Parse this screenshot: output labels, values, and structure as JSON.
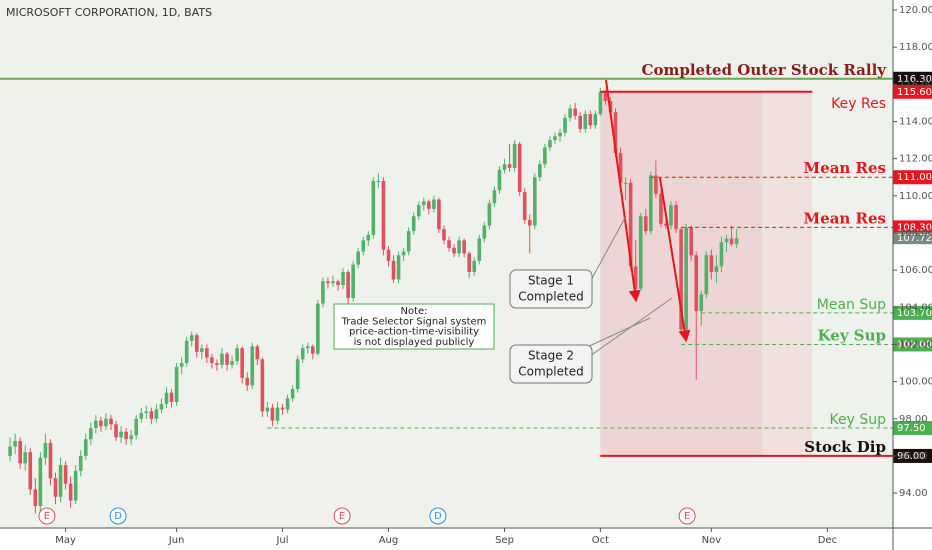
{
  "chart_data": {
    "type": "candlestick",
    "title": "MICROSOFT CORPORATION, 1D, BATS",
    "up_color": "#53b06a",
    "down_color": "#e0505e",
    "xlim": [
      -2,
      175
    ],
    "ylim": [
      92.12,
      120.54
    ],
    "xticks": [
      {
        "value": 11,
        "label": "May"
      },
      {
        "value": 33,
        "label": "Jun"
      },
      {
        "value": 54,
        "label": "Jul"
      },
      {
        "value": 75,
        "label": "Aug"
      },
      {
        "value": 98,
        "label": "Sep"
      },
      {
        "value": 117,
        "label": "Oct"
      },
      {
        "value": 139,
        "label": "Nov"
      },
      {
        "value": 162,
        "label": "Dec"
      }
    ],
    "yticks": [
      {
        "value": 94,
        "label": "94.00"
      },
      {
        "value": 96,
        "label": "96.00"
      },
      {
        "value": 98,
        "label": "98.00"
      },
      {
        "value": 100,
        "label": "100.00"
      },
      {
        "value": 102,
        "label": "102.00"
      },
      {
        "value": 104,
        "label": "104.00"
      },
      {
        "value": 106,
        "label": "106.00"
      },
      {
        "value": 108,
        "label": "108.00"
      },
      {
        "value": 110,
        "label": "110.00"
      },
      {
        "value": 112,
        "label": "112.00"
      },
      {
        "value": 114,
        "label": "114.00"
      },
      {
        "value": 116,
        "label": "116.00"
      },
      {
        "value": 118,
        "label": "118.00"
      },
      {
        "value": 120,
        "label": "120.00"
      }
    ],
    "ohlc": [
      [
        96.0,
        97.0,
        95.7,
        96.5
      ],
      [
        96.5,
        97.2,
        96.1,
        96.8
      ],
      [
        96.8,
        97.0,
        95.3,
        95.6
      ],
      [
        95.6,
        96.6,
        95.2,
        96.2
      ],
      [
        96.2,
        96.4,
        93.9,
        94.2
      ],
      [
        94.2,
        94.8,
        92.9,
        93.3
      ],
      [
        93.3,
        96.2,
        93.0,
        95.9
      ],
      [
        95.9,
        97.2,
        95.5,
        96.7
      ],
      [
        96.7,
        96.9,
        94.4,
        94.8
      ],
      [
        94.8,
        95.1,
        93.4,
        93.8
      ],
      [
        93.8,
        95.9,
        93.5,
        95.5
      ],
      [
        95.5,
        95.7,
        94.2,
        94.5
      ],
      [
        94.5,
        94.9,
        93.2,
        93.6
      ],
      [
        93.6,
        95.5,
        93.4,
        95.2
      ],
      [
        95.2,
        96.3,
        94.9,
        96.0
      ],
      [
        96.0,
        97.2,
        95.8,
        96.9
      ],
      [
        96.9,
        97.8,
        96.6,
        97.5
      ],
      [
        97.5,
        98.2,
        97.2,
        97.9
      ],
      [
        97.9,
        98.1,
        97.3,
        97.6
      ],
      [
        97.6,
        98.3,
        97.4,
        98.0
      ],
      [
        98.0,
        98.2,
        97.4,
        97.7
      ],
      [
        97.7,
        97.9,
        96.8,
        97.0
      ],
      [
        97.0,
        97.6,
        96.7,
        97.3
      ],
      [
        97.3,
        97.5,
        96.6,
        96.9
      ],
      [
        96.9,
        97.4,
        96.6,
        97.1
      ],
      [
        97.1,
        98.2,
        96.9,
        98.0
      ],
      [
        98.0,
        98.6,
        97.8,
        98.3
      ],
      [
        98.3,
        98.7,
        98.0,
        98.4
      ],
      [
        98.4,
        98.6,
        97.7,
        98.0
      ],
      [
        98.0,
        98.8,
        97.8,
        98.5
      ],
      [
        98.5,
        99.1,
        98.3,
        98.8
      ],
      [
        98.8,
        99.7,
        98.6,
        99.4
      ],
      [
        99.4,
        99.6,
        98.6,
        98.9
      ],
      [
        98.9,
        101.0,
        98.7,
        100.8
      ],
      [
        100.8,
        101.3,
        100.4,
        101.0
      ],
      [
        101.0,
        102.4,
        100.8,
        102.2
      ],
      [
        102.2,
        102.7,
        101.9,
        102.5
      ],
      [
        102.5,
        102.6,
        101.3,
        101.6
      ],
      [
        101.6,
        102.0,
        101.2,
        101.8
      ],
      [
        101.8,
        102.0,
        101.0,
        101.3
      ],
      [
        101.3,
        101.5,
        100.7,
        101.0
      ],
      [
        101.0,
        101.2,
        100.6,
        100.9
      ],
      [
        100.9,
        101.8,
        100.7,
        101.5
      ],
      [
        101.5,
        101.6,
        100.6,
        100.9
      ],
      [
        100.9,
        101.4,
        100.7,
        101.1
      ],
      [
        101.1,
        102.0,
        100.9,
        101.8
      ],
      [
        101.8,
        101.9,
        99.9,
        100.2
      ],
      [
        100.2,
        100.5,
        99.5,
        99.8
      ],
      [
        99.8,
        102.1,
        99.6,
        101.9
      ],
      [
        101.9,
        102.0,
        100.9,
        101.2
      ],
      [
        101.2,
        101.3,
        98.1,
        98.4
      ],
      [
        98.4,
        98.9,
        98.1,
        98.6
      ],
      [
        98.6,
        98.8,
        97.6,
        97.9
      ],
      [
        97.9,
        98.9,
        97.7,
        98.6
      ],
      [
        98.6,
        98.8,
        98.2,
        98.5
      ],
      [
        98.5,
        99.3,
        98.3,
        99.1
      ],
      [
        99.1,
        99.8,
        98.9,
        99.6
      ],
      [
        99.6,
        101.4,
        99.4,
        101.2
      ],
      [
        101.2,
        102.0,
        101.0,
        101.8
      ],
      [
        101.8,
        102.1,
        101.5,
        101.9
      ],
      [
        101.9,
        102.0,
        101.2,
        101.5
      ],
      [
        101.5,
        104.4,
        101.4,
        104.2
      ],
      [
        104.2,
        105.6,
        104.0,
        105.4
      ],
      [
        105.4,
        105.6,
        105.0,
        105.3
      ],
      [
        105.3,
        105.7,
        105.1,
        105.4
      ],
      [
        105.4,
        105.5,
        104.9,
        105.2
      ],
      [
        105.2,
        106.1,
        105.0,
        105.9
      ],
      [
        105.9,
        106.0,
        104.2,
        104.5
      ],
      [
        104.5,
        106.5,
        104.3,
        106.3
      ],
      [
        106.3,
        107.2,
        106.1,
        107.0
      ],
      [
        107.0,
        107.8,
        106.8,
        107.6
      ],
      [
        107.6,
        108.1,
        107.3,
        107.9
      ],
      [
        107.9,
        111.0,
        107.7,
        110.8
      ],
      [
        110.8,
        111.2,
        110.4,
        110.8
      ],
      [
        110.8,
        111.0,
        106.8,
        107.1
      ],
      [
        107.1,
        107.3,
        106.2,
        106.5
      ],
      [
        106.5,
        106.8,
        105.3,
        105.5
      ],
      [
        105.5,
        107.0,
        105.3,
        106.8
      ],
      [
        106.8,
        107.2,
        106.5,
        107.0
      ],
      [
        107.0,
        108.3,
        106.8,
        108.1
      ],
      [
        108.1,
        109.1,
        107.9,
        108.9
      ],
      [
        108.9,
        109.7,
        108.7,
        109.5
      ],
      [
        109.5,
        109.9,
        109.2,
        109.7
      ],
      [
        109.7,
        109.8,
        109.0,
        109.3
      ],
      [
        109.3,
        110.0,
        109.1,
        109.8
      ],
      [
        109.8,
        109.9,
        108.0,
        108.2
      ],
      [
        108.2,
        108.4,
        107.4,
        107.6
      ],
      [
        107.6,
        107.8,
        107.0,
        107.2
      ],
      [
        107.2,
        107.4,
        106.7,
        106.9
      ],
      [
        106.9,
        107.8,
        106.7,
        107.6
      ],
      [
        107.6,
        107.7,
        106.7,
        106.9
      ],
      [
        106.9,
        107.0,
        105.6,
        105.9
      ],
      [
        105.9,
        106.7,
        105.7,
        106.5
      ],
      [
        106.5,
        107.9,
        106.3,
        107.7
      ],
      [
        107.7,
        108.6,
        107.5,
        108.4
      ],
      [
        108.4,
        109.8,
        108.2,
        109.6
      ],
      [
        109.6,
        110.5,
        109.4,
        110.3
      ],
      [
        110.3,
        111.6,
        110.1,
        111.4
      ],
      [
        111.4,
        112.0,
        111.2,
        111.7
      ],
      [
        111.7,
        112.8,
        111.3,
        111.5
      ],
      [
        111.5,
        113.0,
        111.3,
        112.8
      ],
      [
        112.8,
        112.9,
        110.0,
        110.2
      ],
      [
        110.2,
        110.4,
        108.5,
        108.7
      ],
      [
        108.7,
        109.0,
        106.9,
        108.4
      ],
      [
        108.4,
        111.2,
        108.2,
        111.0
      ],
      [
        111.0,
        111.9,
        110.8,
        111.7
      ],
      [
        111.7,
        112.8,
        111.5,
        112.6
      ],
      [
        112.6,
        113.2,
        112.4,
        113.0
      ],
      [
        113.0,
        113.4,
        112.8,
        113.2
      ],
      [
        113.2,
        113.6,
        112.9,
        113.4
      ],
      [
        113.4,
        114.4,
        113.2,
        114.2
      ],
      [
        114.2,
        114.9,
        114.0,
        114.7
      ],
      [
        114.7,
        115.0,
        114.1,
        114.3
      ],
      [
        114.3,
        114.5,
        113.4,
        113.6
      ],
      [
        113.6,
        114.6,
        113.4,
        114.4
      ],
      [
        114.4,
        114.6,
        113.6,
        113.8
      ],
      [
        113.8,
        114.6,
        113.6,
        114.4
      ],
      [
        114.4,
        115.8,
        114.3,
        115.6
      ],
      [
        115.6,
        115.7,
        114.9,
        115.1
      ],
      [
        115.1,
        115.3,
        114.3,
        114.5
      ],
      [
        114.5,
        114.7,
        112.1,
        112.3
      ],
      [
        112.3,
        112.6,
        110.5,
        110.7
      ],
      [
        110.7,
        111.0,
        109.8,
        110.7
      ],
      [
        110.7,
        110.9,
        106.0,
        106.2
      ],
      [
        106.2,
        107.6,
        104.8,
        105.0
      ],
      [
        105.0,
        109.1,
        104.9,
        108.9
      ],
      [
        108.9,
        109.3,
        107.9,
        108.1
      ],
      [
        108.1,
        111.3,
        107.9,
        111.1
      ],
      [
        111.1,
        111.9,
        109.9,
        110.1
      ],
      [
        110.1,
        110.3,
        108.3,
        108.5
      ],
      [
        108.5,
        109.0,
        108.2,
        108.4
      ],
      [
        108.4,
        109.7,
        108.2,
        109.5
      ],
      [
        109.5,
        109.7,
        108.0,
        108.2
      ],
      [
        108.2,
        108.3,
        102.6,
        102.8
      ],
      [
        102.8,
        108.5,
        102.5,
        108.3
      ],
      [
        108.3,
        108.4,
        106.5,
        106.8
      ],
      [
        106.8,
        107.0,
        100.1,
        103.8
      ],
      [
        103.8,
        104.9,
        103.0,
        104.7
      ],
      [
        104.7,
        107.0,
        104.5,
        106.8
      ],
      [
        106.8,
        107.1,
        105.5,
        105.9
      ],
      [
        105.9,
        106.8,
        105.3,
        106.2
      ],
      [
        106.2,
        107.8,
        105.9,
        107.5
      ],
      [
        107.5,
        107.9,
        107.0,
        107.7
      ],
      [
        107.7,
        108.4,
        107.3,
        107.4
      ],
      [
        107.4,
        108.2,
        107.2,
        107.72
      ]
    ],
    "last_price": {
      "value": 107.72,
      "label": "107.72"
    },
    "levels": [
      {
        "name": "Completed Outer Stock Rally",
        "value": 116.3,
        "value_label": "116.30",
        "from": -2,
        "color": "#6aa84f",
        "text_color": "#8b1a1a",
        "tag_color": "#1a0d0d",
        "dashed": false,
        "bold": true
      },
      {
        "name": "Key Res",
        "value": 115.6,
        "value_label": "115.60",
        "from": 117,
        "to": 159,
        "color": "#e8141e",
        "text_color": "#e8141e",
        "tag_color": "#e8141e",
        "dashed": false,
        "bold": false
      },
      {
        "name": "Mean Res",
        "value": 111.0,
        "value_label": "111.00",
        "from": 127,
        "color": "#e8141e",
        "text_color": "#e8141e",
        "tag_color": "#e8141e",
        "dashed": true,
        "bold": true
      },
      {
        "name": "Mean Res",
        "value": 108.3,
        "value_label": "108.30",
        "from": 133,
        "color": "#e8141e",
        "text_color": "#e8141e",
        "tag_color": "#e8141e",
        "dashed": true,
        "bold": true
      },
      {
        "name": "Mean Sup",
        "value": 103.7,
        "value_label": "103.70",
        "from": 137,
        "color": "#4caf50",
        "text_color": "#4caf50",
        "tag_color": "#4caf50",
        "dashed": true,
        "bold": false
      },
      {
        "name": "Key Sup",
        "value": 102.0,
        "value_label": "102.00",
        "from": 133,
        "color": "#4caf50",
        "text_color": "#4caf50",
        "tag_color": "#4caf50",
        "dashed": true,
        "bold": true
      },
      {
        "name": "Key Sup",
        "value": 97.5,
        "value_label": "97.50",
        "from": 51,
        "color": "#4caf50",
        "text_color": "#4caf50",
        "tag_color": "#4caf50",
        "dashed": true,
        "bold": false
      },
      {
        "name": "Stock Dip",
        "value": 96.0,
        "value_label": "96.00",
        "from": 117,
        "color": "#e8141e",
        "text_color": "#1a0d0d",
        "tag_color": "#1a0d0d",
        "dashed": false,
        "bold": true
      }
    ],
    "zones": [
      {
        "from": 117,
        "to": 149,
        "color": "#e9a0a8"
      },
      {
        "from": 149,
        "to": 159,
        "color": "#f3c4c9"
      }
    ],
    "annotations": [
      {
        "lines": [
          "Stage 1",
          "Completed"
        ]
      },
      {
        "lines": [
          "Stage 2",
          "Completed"
        ]
      },
      {
        "lines": [
          "Note:",
          "Trade Selector Signal system",
          "price-action-time-visibility",
          "is not displayed publicly"
        ]
      }
    ],
    "events": [
      {
        "label": "E",
        "x": 7.3
      },
      {
        "label": "D",
        "x": 21.4
      },
      {
        "label": "E",
        "x": 65.8
      },
      {
        "label": "D",
        "x": 84.8
      },
      {
        "label": "E",
        "x": 134.2
      }
    ]
  }
}
